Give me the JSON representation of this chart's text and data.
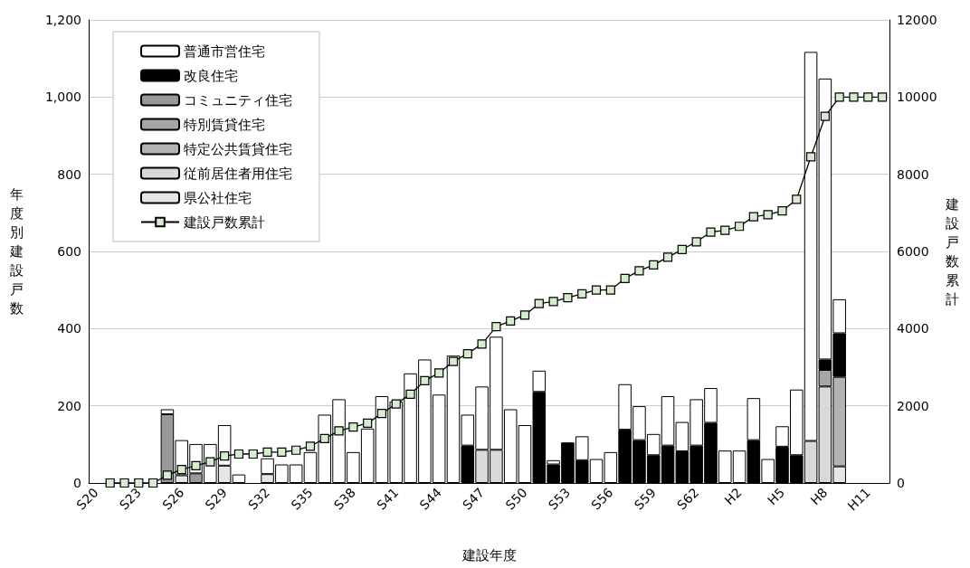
{
  "chart_data": {
    "type": "bar",
    "stacked": true,
    "xlabel": "建設年度",
    "ylabel": "年度別建設戸数",
    "y2label": "建設戸数累計",
    "categories": [
      "S20",
      null,
      null,
      "S23",
      null,
      null,
      "S26",
      null,
      null,
      "S29",
      null,
      null,
      "S32",
      null,
      null,
      "S35",
      null,
      null,
      "S38",
      null,
      null,
      "S41",
      null,
      null,
      "S44",
      null,
      null,
      "S47",
      null,
      null,
      "S50",
      null,
      null,
      "S53",
      null,
      null,
      "S56",
      null,
      null,
      "S59",
      null,
      null,
      "S62",
      null,
      null,
      "H2",
      null,
      null,
      "H5",
      null,
      null,
      "H8",
      null,
      null,
      "H11",
      null
    ],
    "ylim": [
      0,
      1200
    ],
    "yticks": [
      0,
      200,
      400,
      600,
      800,
      {
        "value": 1000,
        "label": "1,000"
      },
      {
        "value": 1200,
        "label": "1,200"
      }
    ],
    "y2lim": [
      0,
      12000
    ],
    "y2ticks": [
      0,
      2000,
      4000,
      6000,
      8000,
      10000,
      12000
    ],
    "grid": "y",
    "legend": "top left",
    "series": [
      {
        "name": "県公社住宅",
        "color": "#e6e6e6",
        "values": [
          null,
          null,
          null,
          null,
          null,
          null,
          20,
          null,
          null,
          45,
          null,
          null,
          23,
          null,
          null,
          null,
          null,
          null,
          null,
          null,
          null,
          null,
          null,
          null,
          null,
          null,
          null,
          null,
          null,
          null,
          null,
          null,
          null,
          null,
          null,
          null,
          null,
          null,
          null,
          null,
          null,
          null,
          null,
          null,
          null,
          null,
          null,
          null,
          null,
          null,
          null,
          null,
          43,
          null,
          null,
          null
        ]
      },
      {
        "name": "従前居住者用住宅",
        "color": "#d9d9d9",
        "values": [
          null,
          null,
          null,
          null,
          null,
          null,
          null,
          null,
          null,
          null,
          null,
          null,
          null,
          null,
          null,
          null,
          null,
          null,
          null,
          null,
          null,
          null,
          null,
          null,
          null,
          null,
          null,
          86,
          86,
          null,
          null,
          null,
          null,
          null,
          null,
          null,
          null,
          null,
          null,
          null,
          null,
          null,
          null,
          null,
          null,
          null,
          null,
          null,
          null,
          null,
          109,
          250,
          null,
          null,
          null,
          null
        ]
      },
      {
        "name": "特定公共賃貸住宅",
        "color": "#b3b3b3",
        "values": [
          null,
          null,
          null,
          null,
          null,
          null,
          null,
          null,
          null,
          null,
          null,
          null,
          null,
          null,
          null,
          null,
          null,
          null,
          null,
          null,
          null,
          null,
          null,
          null,
          null,
          null,
          null,
          null,
          null,
          null,
          null,
          null,
          null,
          null,
          null,
          null,
          null,
          null,
          null,
          null,
          null,
          null,
          null,
          null,
          null,
          null,
          null,
          null,
          null,
          null,
          null,
          null,
          232,
          null,
          null,
          null
        ]
      },
      {
        "name": "特別賃貸住宅",
        "color": "#a6a6a6",
        "values": [
          null,
          null,
          null,
          null,
          null,
          null,
          null,
          null,
          null,
          null,
          null,
          null,
          null,
          null,
          null,
          null,
          null,
          null,
          null,
          null,
          null,
          null,
          null,
          null,
          null,
          null,
          null,
          null,
          null,
          null,
          null,
          null,
          null,
          null,
          null,
          null,
          null,
          null,
          null,
          null,
          null,
          null,
          null,
          null,
          null,
          null,
          null,
          null,
          null,
          null,
          null,
          43,
          null,
          null,
          null,
          null
        ]
      },
      {
        "name": "コミュニティ住宅",
        "color": "#999999",
        "values": [
          null,
          null,
          null,
          null,
          null,
          178,
          null,
          25,
          null,
          null,
          null,
          null,
          null,
          null,
          null,
          null,
          null,
          null,
          null,
          null,
          null,
          null,
          null,
          null,
          null,
          null,
          null,
          null,
          null,
          null,
          null,
          null,
          null,
          null,
          null,
          null,
          null,
          null,
          null,
          null,
          null,
          null,
          null,
          null,
          null,
          null,
          null,
          null,
          null,
          null,
          null,
          null,
          null,
          null,
          null,
          null
        ]
      },
      {
        "name": "改良住宅",
        "color": "#000000",
        "values": [
          null,
          null,
          null,
          null,
          null,
          null,
          null,
          null,
          null,
          null,
          null,
          null,
          null,
          null,
          null,
          null,
          null,
          null,
          null,
          null,
          null,
          null,
          null,
          null,
          null,
          null,
          97,
          null,
          null,
          null,
          null,
          236,
          48,
          105,
          59,
          null,
          null,
          138,
          111,
          72,
          97,
          82,
          97,
          156,
          null,
          null,
          111,
          null,
          94,
          72,
          null,
          27,
          113,
          null,
          null,
          null
        ]
      },
      {
        "name": "普通市営住宅",
        "color": "#ffffff",
        "values": [
          null,
          null,
          null,
          null,
          null,
          13,
          91,
          76,
          101,
          105,
          22,
          null,
          41,
          48,
          48,
          80,
          177,
          217,
          80,
          141,
          225,
          211,
          284,
          320,
          229,
          330,
          80,
          164,
          293,
          191,
          150,
          55,
          11,
          null,
          62,
          62,
          80,
          118,
          88,
          55,
          128,
          76,
          120,
          90,
          84,
          84,
          109,
          62,
          53,
          170,
          1008,
          728,
          88,
          null,
          null,
          null
        ]
      },
      {
        "name": "建設戸数累計",
        "type": "line",
        "axis": "y2",
        "marker": "square",
        "color": "#d6ebcf",
        "values": [
          null,
          0,
          0,
          0,
          0,
          200,
          350,
          450,
          550,
          700,
          750,
          750,
          800,
          800,
          850,
          950,
          1150,
          1350,
          1450,
          1550,
          1800,
          2050,
          2300,
          2650,
          2850,
          3150,
          3350,
          3600,
          4050,
          4200,
          4350,
          4650,
          4700,
          4800,
          4900,
          5000,
          5000,
          5300,
          5500,
          5650,
          5850,
          6050,
          6250,
          6500,
          6550,
          6650,
          6900,
          6950,
          7050,
          7350,
          8450,
          9500,
          10000,
          10000,
          10000,
          10000
        ]
      }
    ]
  }
}
